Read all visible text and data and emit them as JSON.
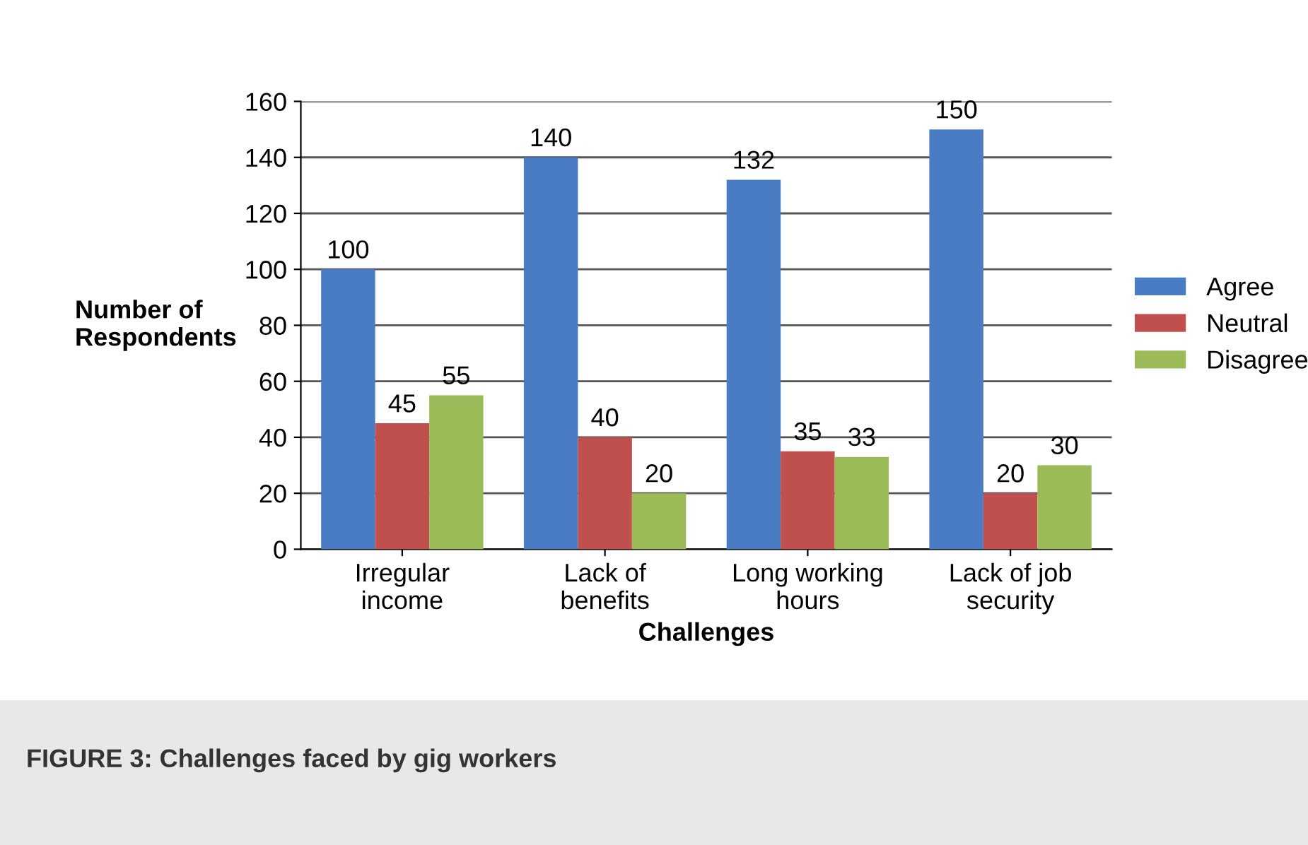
{
  "chart_data": {
    "type": "bar",
    "xlabel": "Challenges",
    "ylabel": "Number of\nRespondents",
    "categories": [
      "Irregular\nincome",
      "Lack of\nbenefits",
      "Long working\nhours",
      "Lack of job\nsecurity"
    ],
    "series": [
      {
        "name": "Agree",
        "color": "#4a7cc4",
        "values": [
          100,
          140,
          132,
          150
        ]
      },
      {
        "name": "Neutral",
        "color": "#c0504d",
        "values": [
          45,
          40,
          35,
          20
        ]
      },
      {
        "name": "Disagree",
        "color": "#9bbb59",
        "values": [
          55,
          20,
          33,
          30
        ]
      }
    ],
    "ylim": [
      0,
      160
    ],
    "yticks": [
      0,
      20,
      40,
      60,
      80,
      100,
      120,
      140,
      160
    ],
    "grid": "y",
    "legend": "right",
    "data_labels": true,
    "annotations": [
      "FIGURE 3: Challenges faced by gig workers"
    ]
  }
}
